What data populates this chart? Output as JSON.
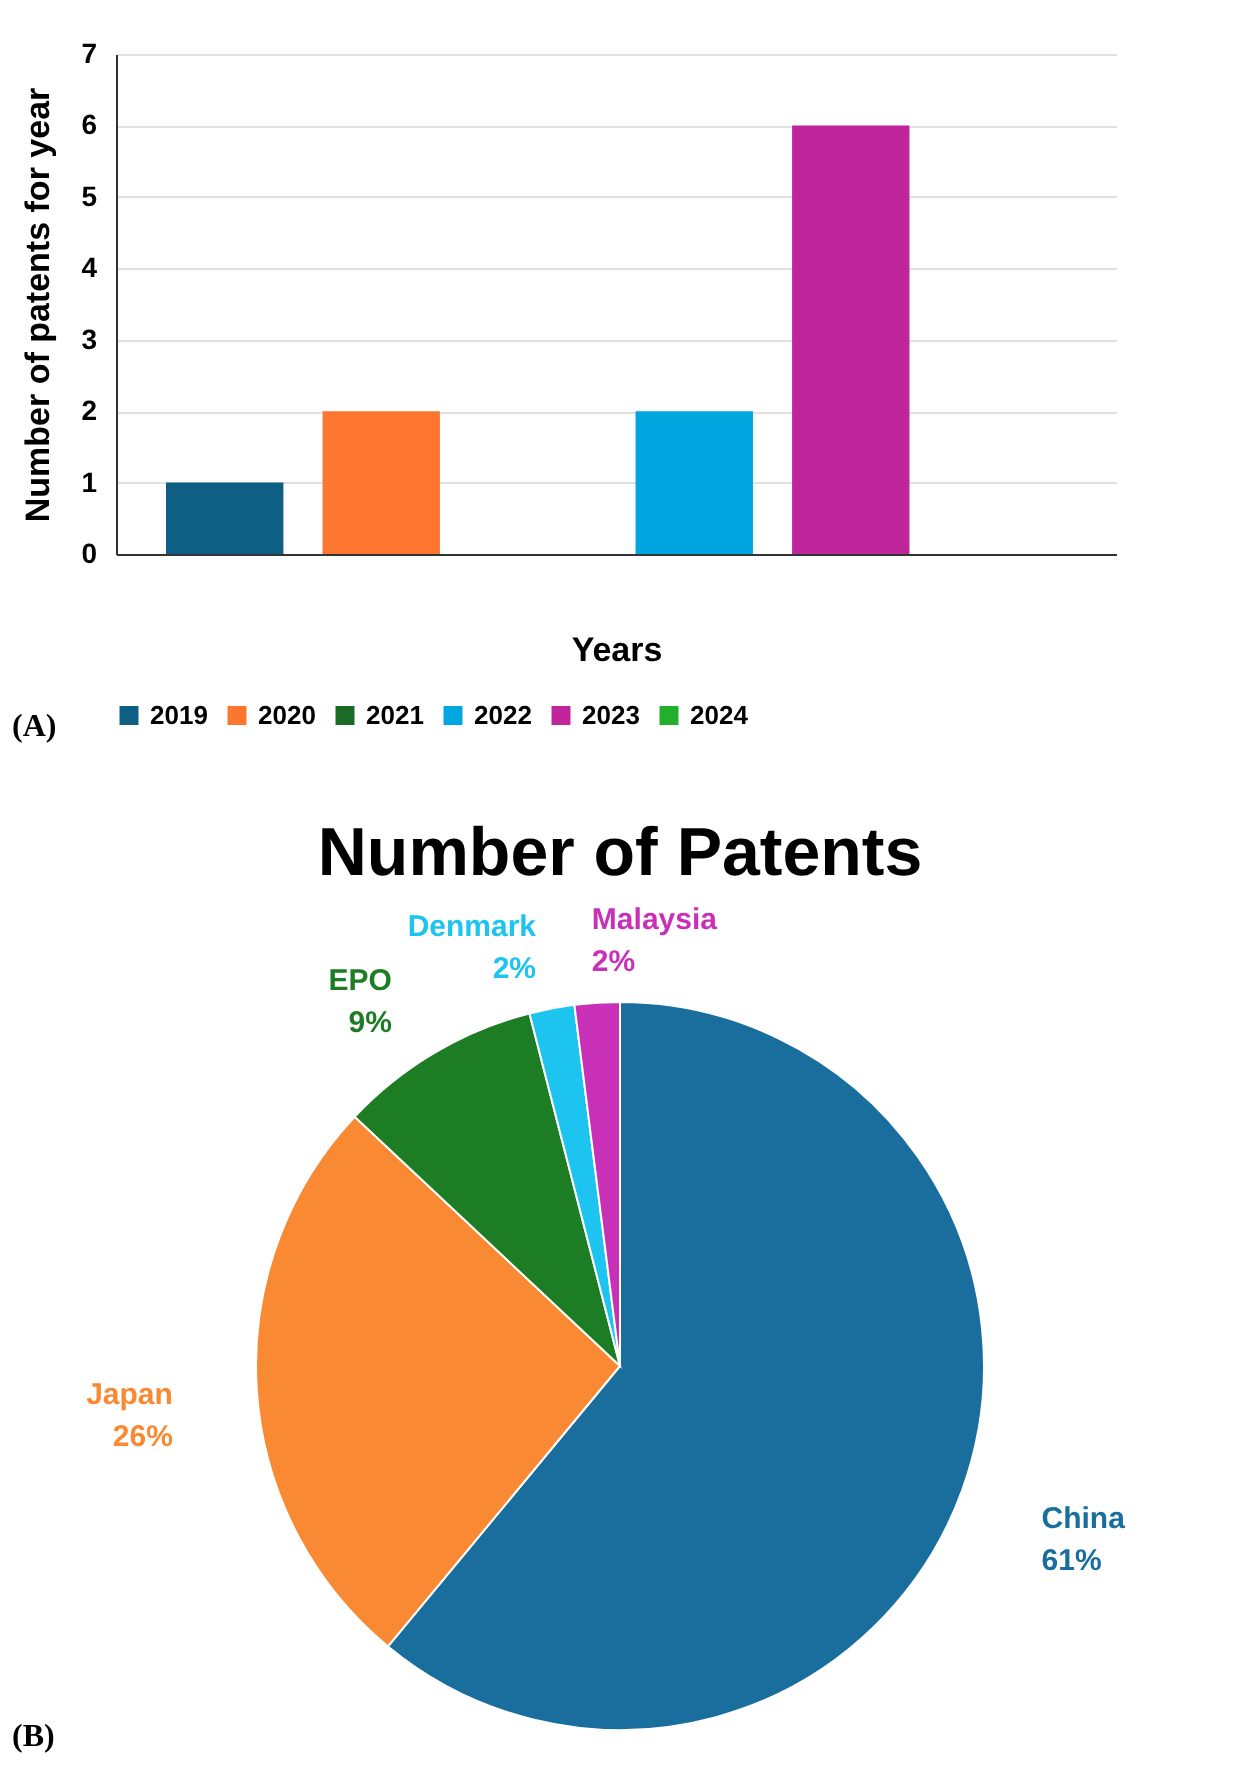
{
  "chart_data": [
    {
      "type": "bar",
      "xlabel": "Years",
      "ylabel": "Number of patents for year",
      "categories": [
        null
      ],
      "series": [
        {
          "name": "2019",
          "color": "#0f5f85",
          "values": [
            1
          ]
        },
        {
          "name": "2020",
          "color": "#fc7630",
          "values": [
            2
          ]
        },
        {
          "name": "2021",
          "color": "#1a6b25",
          "values": [
            0
          ]
        },
        {
          "name": "2022",
          "color": "#00a6e0",
          "values": [
            2
          ]
        },
        {
          "name": "2023",
          "color": "#c1259c",
          "values": [
            6
          ]
        },
        {
          "name": "2024",
          "color": "#22b02a",
          "values": [
            0
          ]
        }
      ],
      "ylim": [
        0,
        7
      ],
      "yticks": [
        0,
        1,
        2,
        3,
        4,
        5,
        6,
        7
      ],
      "grid": "y",
      "legend": "bottom",
      "annotations": [
        "(A)"
      ]
    },
    {
      "type": "pie",
      "title": "Number of Patents",
      "categories": [
        "China",
        "Japan",
        "EPO",
        "Denmark",
        "Malaysia"
      ],
      "values": [
        61,
        26,
        9,
        2,
        2
      ],
      "colors": [
        "#1a6e9e",
        "#f98a33",
        "#1d7d24",
        "#1dc4f0",
        "#c930b8"
      ],
      "value_labels": [
        "61%",
        "26%",
        "9%",
        "2%",
        "2%"
      ],
      "annotations": [
        "(B)"
      ]
    }
  ]
}
